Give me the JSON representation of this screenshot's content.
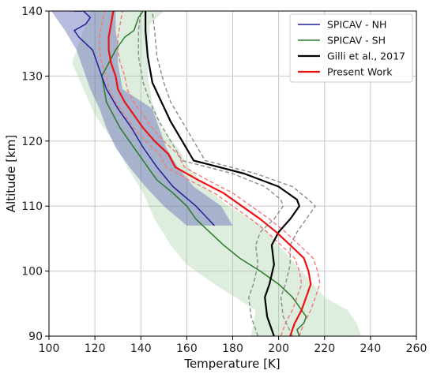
{
  "chart_data": {
    "type": "line",
    "xlabel": "Temperature [K]",
    "ylabel": "Altitude [km]",
    "xlim": [
      100,
      260
    ],
    "ylim": [
      90,
      140
    ],
    "xticks": [
      100,
      120,
      140,
      160,
      180,
      200,
      220,
      240,
      260
    ],
    "yticks": [
      90,
      100,
      110,
      120,
      130,
      140
    ],
    "grid": true,
    "legend_position": "top-right",
    "colors": {
      "spicav_nh": "#1f1f9a",
      "spicav_nh_band": "#5a5fb3",
      "spicav_sh": "#2a7a2a",
      "spicav_sh_band": "#9ccb9c",
      "gilli": "#000000",
      "gilli_bounds": "#8a8a8a",
      "present": "#ee1111",
      "present_bounds": "#f27a7a",
      "grid": "#c8c8c8"
    },
    "series": [
      {
        "name": "SPICAV - NH",
        "key": "spicav_nh",
        "points": [
          [
            172,
            107
          ],
          [
            164,
            110
          ],
          [
            154,
            113
          ],
          [
            147,
            116
          ],
          [
            141,
            119
          ],
          [
            136,
            122
          ],
          [
            130,
            125
          ],
          [
            125,
            128
          ],
          [
            123,
            130
          ],
          [
            121,
            132
          ],
          [
            119,
            134
          ],
          [
            116,
            135
          ],
          [
            113,
            136
          ],
          [
            111,
            137
          ],
          [
            116,
            138
          ],
          [
            118,
            139
          ],
          [
            115,
            140
          ],
          [
            112,
            140
          ],
          [
            111,
            140
          ],
          [
            112,
            141
          ]
        ],
        "band": {
          "upper": [
            [
              180,
              107
            ],
            [
              175,
              110
            ],
            [
              163,
              113
            ],
            [
              156,
              116
            ],
            [
              151,
              119
            ],
            [
              148,
              122
            ],
            [
              145,
              125
            ],
            [
              132,
              128
            ],
            [
              131,
              130
            ],
            [
              130,
              132
            ],
            [
              130,
              135
            ],
            [
              129,
              137
            ],
            [
              129,
              140
            ]
          ],
          "lower": [
            [
              160,
              107
            ],
            [
              150,
              110
            ],
            [
              142,
              113
            ],
            [
              135,
              116
            ],
            [
              129,
              119
            ],
            [
              125,
              122
            ],
            [
              122,
              125
            ],
            [
              118,
              128
            ],
            [
              116,
              130
            ],
            [
              114,
              132
            ],
            [
              112,
              134
            ],
            [
              107,
              137
            ],
            [
              101,
              140
            ]
          ]
        }
      },
      {
        "name": "SPICAV - SH",
        "key": "spicav_sh",
        "points": [
          [
            209,
            90
          ],
          [
            208,
            91
          ],
          [
            211,
            92
          ],
          [
            212,
            93
          ],
          [
            210,
            94
          ],
          [
            206,
            96
          ],
          [
            200,
            98
          ],
          [
            192,
            100
          ],
          [
            183,
            102
          ],
          [
            176,
            104
          ],
          [
            170,
            106
          ],
          [
            164,
            108
          ],
          [
            160,
            110
          ],
          [
            154,
            112
          ],
          [
            147,
            114
          ],
          [
            143,
            116
          ],
          [
            139,
            118
          ],
          [
            135,
            120
          ],
          [
            131,
            122
          ],
          [
            128,
            124
          ],
          [
            125,
            126
          ],
          [
            124,
            128
          ],
          [
            123,
            130
          ],
          [
            126,
            132
          ],
          [
            129,
            134
          ],
          [
            133,
            136
          ],
          [
            137,
            137
          ],
          [
            139,
            139
          ],
          [
            141,
            140
          ]
        ],
        "band": {
          "upper": [
            [
              236,
              90
            ],
            [
              234,
              92
            ],
            [
              230,
              94
            ],
            [
              220,
              96
            ],
            [
              210,
              100
            ],
            [
              200,
              104
            ],
            [
              193,
              107
            ],
            [
              178,
              110
            ],
            [
              168,
              113
            ],
            [
              161,
              116
            ],
            [
              156,
              119
            ],
            [
              149,
              122
            ],
            [
              145,
              126
            ],
            [
              143,
              130
            ],
            [
              143,
              134
            ],
            [
              144,
              138
            ],
            [
              150,
              140
            ]
          ],
          "lower": [
            [
              188,
              90
            ],
            [
              190,
              94
            ],
            [
              172,
              98
            ],
            [
              160,
              101
            ],
            [
              153,
              104
            ],
            [
              146,
              108
            ],
            [
              141,
              112
            ],
            [
              134,
              116
            ],
            [
              128,
              120
            ],
            [
              120,
              124
            ],
            [
              115,
              128
            ],
            [
              110,
              132
            ],
            [
              114,
              136
            ],
            [
              118,
              140
            ]
          ]
        }
      },
      {
        "name": "Gilli et al., 2017",
        "key": "gilli",
        "points": [
          [
            198,
            90
          ],
          [
            195,
            93
          ],
          [
            194,
            96
          ],
          [
            196,
            98
          ],
          [
            198,
            101
          ],
          [
            197,
            104
          ],
          [
            200,
            106
          ],
          [
            205,
            108
          ],
          [
            209,
            110
          ],
          [
            208,
            111
          ],
          [
            200,
            113
          ],
          [
            185,
            115
          ],
          [
            163,
            117
          ],
          [
            158,
            120
          ],
          [
            153,
            123
          ],
          [
            149,
            126
          ],
          [
            145,
            129
          ],
          [
            143,
            133
          ],
          [
            142,
            137
          ],
          [
            142,
            140
          ]
        ]
      },
      {
        "name": "",
        "key": "gilli_upper",
        "style": "dashed-bound",
        "points": [
          [
            206,
            90
          ],
          [
            202,
            93
          ],
          [
            201,
            96
          ],
          [
            203,
            98
          ],
          [
            205,
            101
          ],
          [
            205,
            104
          ],
          [
            208,
            106
          ],
          [
            212,
            108
          ],
          [
            216,
            110
          ],
          [
            213,
            111
          ],
          [
            206,
            113
          ],
          [
            190,
            115
          ],
          [
            168,
            117
          ],
          [
            163,
            120
          ],
          [
            158,
            123
          ],
          [
            153,
            126
          ],
          [
            150,
            129
          ],
          [
            147,
            133
          ],
          [
            146,
            137
          ],
          [
            145,
            140
          ]
        ]
      },
      {
        "name": "",
        "key": "gilli_lower",
        "style": "dashed-bound",
        "points": [
          [
            191,
            90
          ],
          [
            188,
            93
          ],
          [
            187,
            96
          ],
          [
            189,
            98
          ],
          [
            191,
            101
          ],
          [
            190,
            104
          ],
          [
            192,
            106
          ],
          [
            198,
            108
          ],
          [
            202,
            110
          ],
          [
            201,
            111
          ],
          [
            194,
            113
          ],
          [
            180,
            115
          ],
          [
            158,
            117
          ],
          [
            153,
            120
          ],
          [
            148,
            123
          ],
          [
            144,
            126
          ],
          [
            141,
            129
          ],
          [
            139,
            133
          ],
          [
            139,
            137
          ],
          [
            140,
            140
          ]
        ]
      },
      {
        "name": "Present Work",
        "key": "present",
        "points": [
          [
            205,
            90
          ],
          [
            207,
            92
          ],
          [
            210,
            94
          ],
          [
            212,
            96
          ],
          [
            214,
            98
          ],
          [
            213,
            100
          ],
          [
            211,
            102
          ],
          [
            205,
            104
          ],
          [
            199,
            106
          ],
          [
            192,
            108
          ],
          [
            184,
            110
          ],
          [
            176,
            112
          ],
          [
            165,
            114
          ],
          [
            155,
            116
          ],
          [
            152,
            118
          ],
          [
            146,
            120
          ],
          [
            141,
            122
          ],
          [
            137,
            124
          ],
          [
            133,
            126
          ],
          [
            130,
            128
          ],
          [
            129,
            130
          ],
          [
            127,
            132
          ],
          [
            126,
            134
          ],
          [
            126,
            136
          ],
          [
            127,
            138
          ],
          [
            128,
            140
          ]
        ]
      },
      {
        "name": "",
        "key": "present_upper",
        "style": "dashed-bound",
        "points": [
          [
            209,
            90
          ],
          [
            211,
            92
          ],
          [
            214,
            94
          ],
          [
            216,
            96
          ],
          [
            218,
            98
          ],
          [
            217,
            100
          ],
          [
            215,
            102
          ],
          [
            209,
            104
          ],
          [
            203,
            106
          ],
          [
            196,
            108
          ],
          [
            188,
            110
          ],
          [
            180,
            112
          ],
          [
            169,
            114
          ],
          [
            159,
            116
          ],
          [
            156,
            118
          ],
          [
            150,
            120
          ],
          [
            145,
            122
          ],
          [
            141,
            124
          ],
          [
            137,
            126
          ],
          [
            134,
            128
          ],
          [
            133,
            130
          ],
          [
            131,
            132
          ],
          [
            130,
            134
          ],
          [
            130,
            136
          ],
          [
            131,
            138
          ],
          [
            132,
            140
          ]
        ]
      },
      {
        "name": "",
        "key": "present_lower",
        "style": "dashed-bound",
        "points": [
          [
            201,
            90
          ],
          [
            203,
            92
          ],
          [
            206,
            94
          ],
          [
            208,
            96
          ],
          [
            210,
            98
          ],
          [
            209,
            100
          ],
          [
            207,
            102
          ],
          [
            201,
            104
          ],
          [
            195,
            106
          ],
          [
            188,
            108
          ],
          [
            180,
            110
          ],
          [
            172,
            112
          ],
          [
            161,
            114
          ],
          [
            151,
            116
          ],
          [
            148,
            118
          ],
          [
            142,
            120
          ],
          [
            137,
            122
          ],
          [
            133,
            124
          ],
          [
            129,
            126
          ],
          [
            126,
            128
          ],
          [
            125,
            130
          ],
          [
            123,
            132
          ],
          [
            122,
            134
          ],
          [
            122,
            136
          ],
          [
            123,
            138
          ],
          [
            124,
            140
          ]
        ]
      }
    ],
    "legend": [
      {
        "label": "SPICAV - NH",
        "key": "spicav_nh"
      },
      {
        "label": "SPICAV - SH",
        "key": "spicav_sh"
      },
      {
        "label": "Gilli et al., 2017",
        "key": "gilli"
      },
      {
        "label": "Present Work",
        "key": "present"
      }
    ]
  }
}
